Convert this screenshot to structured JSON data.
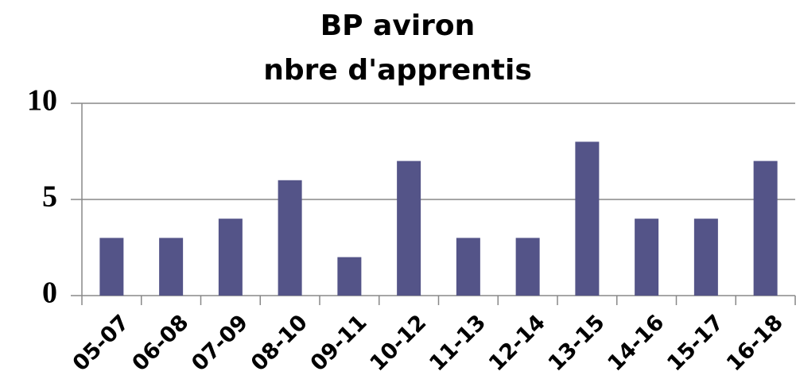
{
  "chart_data": {
    "type": "bar",
    "title": [
      "BP aviron",
      "nbre d'apprentis"
    ],
    "categories": [
      "05-07",
      "06-08",
      "07-09",
      "08-10",
      "09-11",
      "10-12",
      "11-13",
      "12-14",
      "13-15",
      "14-16",
      "15-17",
      "16-18"
    ],
    "values": [
      3,
      3,
      4,
      6,
      2,
      7,
      3,
      3,
      8,
      4,
      4,
      7
    ],
    "color": "#545488",
    "ylim": [
      0,
      10
    ],
    "yticks": [
      0,
      5,
      10
    ],
    "grid": true
  }
}
